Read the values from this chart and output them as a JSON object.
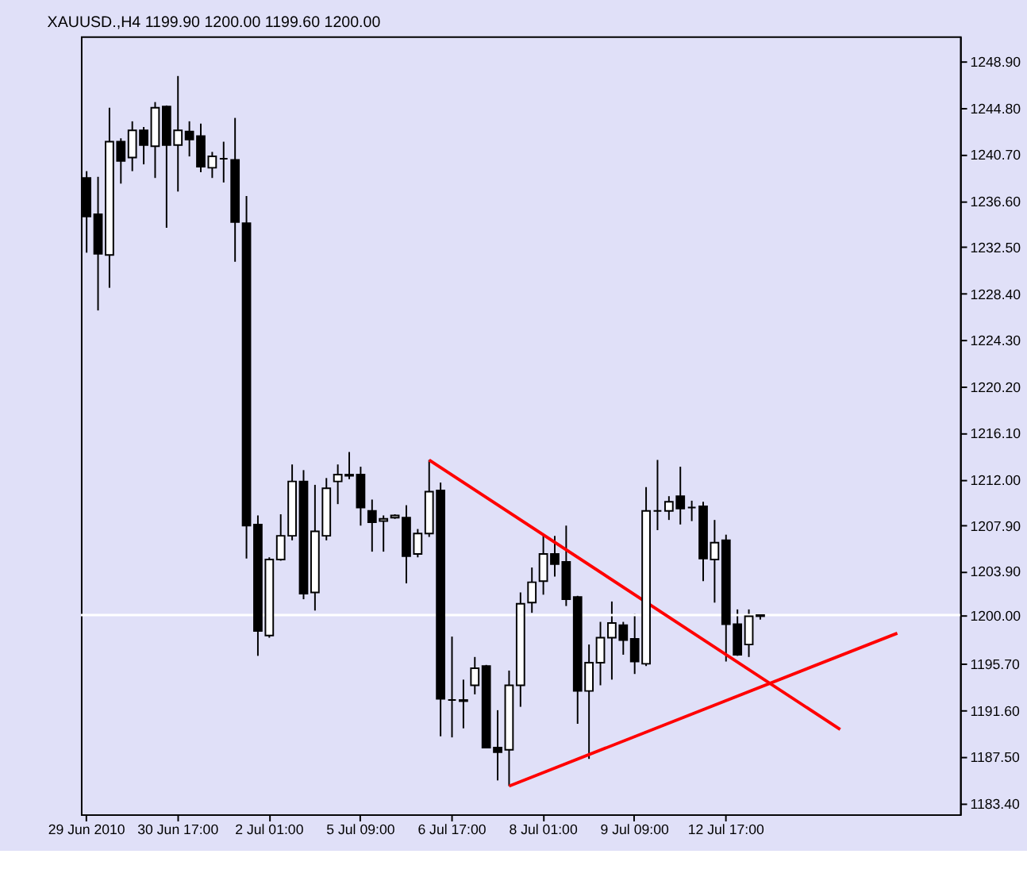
{
  "chart_data": {
    "type": "candlestick",
    "title": "XAUUSD.,H4  1199.90 1200.00 1199.60 1200.00",
    "categories": [
      "29 Jun 2010",
      null,
      null,
      null,
      null,
      null,
      null,
      null,
      "30 Jun 17:00",
      null,
      null,
      null,
      null,
      null,
      null,
      null,
      "2 Jul 01:00",
      null,
      null,
      null,
      null,
      null,
      null,
      null,
      "5 Jul 09:00",
      null,
      null,
      null,
      null,
      null,
      null,
      null,
      "6 Jul 17:00",
      null,
      null,
      null,
      null,
      null,
      null,
      null,
      "8 Jul 01:00",
      null,
      null,
      null,
      null,
      null,
      null,
      null,
      "9 Jul 09:00",
      null,
      null,
      null,
      null,
      null,
      null,
      null,
      "12 Jul 17:00",
      null,
      null,
      null,
      null,
      null,
      null,
      null,
      null,
      null,
      null,
      null,
      null,
      null,
      null,
      null,
      null,
      null,
      null,
      null,
      null
    ],
    "ohlc": [
      [
        1238.6,
        1239.2,
        1232.0,
        1235.2
      ],
      [
        1235.4,
        1238.7,
        1226.9,
        1231.9
      ],
      [
        1231.8,
        1244.8,
        1228.9,
        1241.8
      ],
      [
        1241.8,
        1242.1,
        1238.1,
        1240.1
      ],
      [
        1240.4,
        1243.6,
        1239.2,
        1242.8
      ],
      [
        1242.8,
        1243.1,
        1239.8,
        1241.5
      ],
      [
        1241.4,
        1245.3,
        1238.6,
        1244.8
      ],
      [
        1244.9,
        1245.0,
        1234.2,
        1241.5
      ],
      [
        1241.5,
        1247.6,
        1237.4,
        1242.8
      ],
      [
        1242.7,
        1243.6,
        1240.5,
        1242.0
      ],
      [
        1242.3,
        1243.4,
        1239.1,
        1239.6
      ],
      [
        1239.5,
        1240.9,
        1238.6,
        1240.5
      ],
      [
        1240.3,
        1241.8,
        1238.2,
        1240.3
      ],
      [
        1240.2,
        1243.9,
        1231.2,
        1234.7
      ],
      [
        1234.6,
        1237.0,
        1205.0,
        1207.9
      ],
      [
        1208.0,
        1208.8,
        1196.4,
        1198.6
      ],
      [
        1198.2,
        1205.1,
        1198.0,
        1204.9
      ],
      [
        1204.9,
        1208.9,
        1204.8,
        1207.0
      ],
      [
        1207.0,
        1213.3,
        1206.6,
        1211.8
      ],
      [
        1211.8,
        1212.8,
        1201.4,
        1201.9
      ],
      [
        1202.0,
        1211.5,
        1200.4,
        1207.4
      ],
      [
        1207.0,
        1212.1,
        1206.6,
        1211.2
      ],
      [
        1211.8,
        1213.3,
        1209.8,
        1212.4
      ],
      [
        1212.4,
        1214.4,
        1212.0,
        1212.3
      ],
      [
        1212.4,
        1213.1,
        1207.9,
        1209.5
      ],
      [
        1209.2,
        1210.2,
        1205.6,
        1208.2
      ],
      [
        1208.3,
        1208.8,
        1205.6,
        1208.5
      ],
      [
        1208.6,
        1208.9,
        1208.5,
        1208.8
      ],
      [
        1208.6,
        1209.7,
        1202.8,
        1205.2
      ],
      [
        1205.4,
        1207.6,
        1205.1,
        1207.2
      ],
      [
        1207.2,
        1213.7,
        1206.9,
        1210.9
      ],
      [
        1211.0,
        1211.7,
        1189.3,
        1192.6
      ],
      [
        1192.5,
        1198.1,
        1189.2,
        1192.5
      ],
      [
        1192.5,
        1194.3,
        1190.0,
        1192.4
      ],
      [
        1193.8,
        1196.3,
        1193.0,
        1195.3
      ],
      [
        1195.5,
        1195.6,
        1188.3,
        1188.3
      ],
      [
        1188.3,
        1191.6,
        1185.4,
        1187.9
      ],
      [
        1188.1,
        1195.1,
        1184.9,
        1193.8
      ],
      [
        1193.8,
        1202.0,
        1191.9,
        1201.0
      ],
      [
        1201.1,
        1204.2,
        1200.2,
        1202.9
      ],
      [
        1203.0,
        1207.0,
        1201.8,
        1205.4
      ],
      [
        1205.4,
        1207.0,
        1203.4,
        1204.5
      ],
      [
        1204.7,
        1207.9,
        1200.8,
        1201.4
      ],
      [
        1201.6,
        1201.7,
        1190.4,
        1193.3
      ],
      [
        1193.3,
        1197.4,
        1187.3,
        1195.8
      ],
      [
        1195.8,
        1199.4,
        1193.8,
        1198.0
      ],
      [
        1198.0,
        1201.2,
        1194.3,
        1199.3
      ],
      [
        1199.1,
        1199.4,
        1196.5,
        1197.8
      ],
      [
        1197.9,
        1200.1,
        1194.8,
        1195.9
      ],
      [
        1195.7,
        1211.3,
        1195.5,
        1209.2
      ],
      [
        1209.2,
        1213.7,
        1207.5,
        1209.2
      ],
      [
        1209.2,
        1210.5,
        1208.4,
        1210.0
      ],
      [
        1210.5,
        1213.1,
        1208.0,
        1209.4
      ],
      [
        1209.5,
        1210.1,
        1208.3,
        1209.5
      ],
      [
        1209.6,
        1210.0,
        1203.0,
        1205.0
      ],
      [
        1204.9,
        1208.4,
        1201.1,
        1206.4
      ],
      [
        1206.6,
        1207.1,
        1195.9,
        1199.2
      ],
      [
        1199.2,
        1200.5,
        1196.4,
        1196.5
      ],
      [
        1197.4,
        1200.5,
        1196.3,
        1199.9
      ],
      [
        1199.9,
        1200.0,
        1199.6,
        1200.0
      ],
      null,
      null,
      null,
      null,
      null,
      null,
      null,
      null,
      null,
      null,
      null,
      null,
      null,
      null,
      null,
      null,
      null
    ],
    "colors": [
      "#000000",
      "#000000",
      "#ffffff",
      "#000000",
      "#ffffff",
      "#000000",
      "#ffffff",
      "#000000",
      "#ffffff",
      "#000000",
      "#000000",
      "#ffffff",
      "#000000",
      "#000000",
      "#000000",
      "#000000",
      "#ffffff",
      "#ffffff",
      "#ffffff",
      "#000000",
      "#ffffff",
      "#ffffff",
      "#ffffff",
      "#000000",
      "#000000",
      "#000000",
      "#ffffff",
      "#ffffff",
      "#000000",
      "#ffffff",
      "#ffffff",
      "#000000",
      "#000000",
      "#000000",
      "#ffffff",
      "#000000",
      "#000000",
      "#ffffff",
      "#ffffff",
      "#ffffff",
      "#ffffff",
      "#000000",
      "#000000",
      "#000000",
      "#ffffff",
      "#ffffff",
      "#ffffff",
      "#000000",
      "#000000",
      "#ffffff",
      "#000000",
      "#ffffff",
      "#000000",
      "#000000",
      "#000000",
      "#ffffff",
      "#000000",
      "#000000",
      "#ffffff",
      "#ffffff",
      null,
      null,
      null,
      null,
      null,
      null,
      null,
      null,
      null,
      null,
      null,
      null,
      null,
      null,
      null,
      null,
      null
    ],
    "series": [
      {
        "type": "line",
        "color": "#ff0000",
        "values": [
          null,
          null,
          null,
          null,
          null,
          null,
          null,
          null,
          null,
          null,
          null,
          null,
          null,
          null,
          null,
          null,
          null,
          null,
          null,
          null,
          null,
          null,
          null,
          null,
          null,
          null,
          null,
          null,
          null,
          null,
          1213.7,
          null,
          null,
          null,
          null,
          null,
          null,
          null,
          null,
          null,
          null,
          null,
          null,
          null,
          null,
          null,
          null,
          null,
          null,
          null,
          null,
          null,
          null,
          null,
          null,
          null,
          null,
          null,
          null,
          null,
          null,
          null,
          null,
          null,
          null,
          null,
          1189.9,
          null,
          null,
          null,
          null,
          null,
          null,
          null,
          null,
          null,
          null
        ]
      },
      {
        "type": "line",
        "color": "#ff0000",
        "values": [
          null,
          null,
          null,
          null,
          null,
          null,
          null,
          null,
          null,
          null,
          null,
          null,
          null,
          null,
          null,
          null,
          null,
          null,
          null,
          null,
          null,
          null,
          null,
          null,
          null,
          null,
          null,
          null,
          null,
          null,
          null,
          null,
          null,
          null,
          null,
          null,
          null,
          1184.9,
          null,
          null,
          null,
          null,
          null,
          null,
          null,
          null,
          null,
          null,
          null,
          null,
          null,
          null,
          null,
          null,
          null,
          null,
          null,
          null,
          null,
          null,
          null,
          null,
          null,
          null,
          null,
          null,
          null,
          null,
          null,
          null,
          null,
          1198.4,
          null,
          null,
          null,
          null,
          null
        ]
      }
    ],
    "ref_lines": [
      {
        "axis": "y",
        "value": 1200.0,
        "color": "#ffffff"
      }
    ],
    "ylim": [
      1182.4,
      1251.1
    ],
    "yticks": [
      {
        "value": 1248.9,
        "label": "1248.90"
      },
      {
        "value": 1244.8,
        "label": "1244.80"
      },
      {
        "value": 1240.7,
        "label": "1240.70"
      },
      {
        "value": 1236.6,
        "label": "1236.60"
      },
      {
        "value": 1232.5,
        "label": "1232.50"
      },
      {
        "value": 1228.4,
        "label": "1228.40"
      },
      {
        "value": 1224.3,
        "label": "1224.30"
      },
      {
        "value": 1220.2,
        "label": "1220.20"
      },
      {
        "value": 1216.1,
        "label": "1216.10"
      },
      {
        "value": 1212.0,
        "label": "1212.00"
      },
      {
        "value": 1207.9,
        "label": "1207.90"
      },
      {
        "value": 1203.9,
        "label": "1203.90"
      },
      {
        "value": 1200.0,
        "label": "1200.00"
      },
      {
        "value": 1195.7,
        "label": "1195.70"
      },
      {
        "value": 1191.6,
        "label": "1191.60"
      },
      {
        "value": 1187.5,
        "label": "1187.50"
      },
      {
        "value": 1183.4,
        "label": "1183.40"
      }
    ],
    "grid": false
  }
}
